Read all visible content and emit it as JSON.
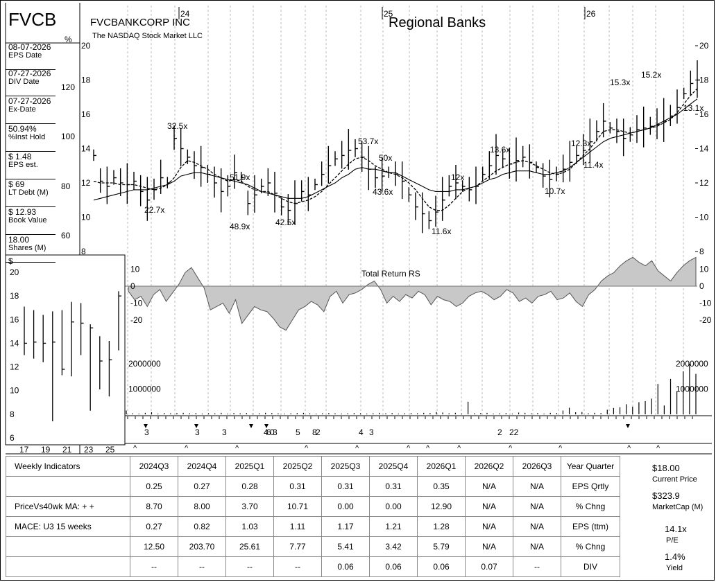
{
  "header": {
    "ticker": "FVCB",
    "company": "FVCBANKCORP INC",
    "exchange": "The NASDAQ Stock Market LLC",
    "industry": "Regional Banks",
    "pct_sign": "%",
    "dollar_sign": "$"
  },
  "sidebar": [
    {
      "value": "08-07-2026",
      "label": "EPS Date"
    },
    {
      "value": "07-27-2026",
      "label": "DIV Date"
    },
    {
      "value": "07-27-2026",
      "label": "Ex-Date"
    },
    {
      "value": "50.94%",
      "label": "%Inst Hold"
    },
    {
      "value": "$ 1.48",
      "label": "EPS est."
    },
    {
      "value": "$ 69",
      "label": "LT Debt (M)"
    },
    {
      "value": "$ 12.93",
      "label": "Book Value"
    },
    {
      "value": "18.00",
      "label": "Shares (M)"
    }
  ],
  "right_panel": {
    "price": "$18.00",
    "price_label": "Current Price",
    "mcap": "$323.9",
    "mcap_label": "MarketCap (M)",
    "pe": "14.1x",
    "pe_label": "P/E",
    "yield": "1.4%",
    "yield_label": "Yield"
  },
  "fundamentals": {
    "quarters": [
      "2024Q3",
      "2024Q4",
      "2025Q1",
      "2025Q2",
      "2025Q3",
      "2025Q4",
      "2026Q1",
      "2026Q2",
      "2026Q3"
    ],
    "rows": [
      {
        "left": "Weekly Indicators",
        "values": [
          "2024Q3",
          "2024Q4",
          "2025Q1",
          "2025Q2",
          "2025Q3",
          "2025Q4",
          "2026Q1",
          "2026Q2",
          "2026Q3"
        ],
        "label": "Year Quarter"
      },
      {
        "left": "",
        "values": [
          "0.25",
          "0.27",
          "0.28",
          "0.31",
          "0.31",
          "0.31",
          "0.35",
          "N/A",
          "N/A"
        ],
        "label": "EPS Qrtly"
      },
      {
        "left": "PriceVs40wk MA:  + +",
        "values": [
          "8.70",
          "8.00",
          "3.70",
          "10.71",
          "0.00",
          "0.00",
          "12.90",
          "N/A",
          "N/A"
        ],
        "label": "% Chng"
      },
      {
        "left": "MACE: U3  15 weeks",
        "values": [
          "0.27",
          "0.82",
          "1.03",
          "1.11",
          "1.17",
          "1.21",
          "1.28",
          "N/A",
          "N/A"
        ],
        "label": "EPS (ttm)"
      },
      {
        "left": "",
        "values": [
          "12.50",
          "203.70",
          "25.61",
          "7.77",
          "5.41",
          "3.42",
          "5.79",
          "N/A",
          "N/A"
        ],
        "label": "% Chng"
      },
      {
        "left": "",
        "values": [
          "--",
          "--",
          "--",
          "--",
          "0.06",
          "0.06",
          "0.06",
          "0.07",
          "--"
        ],
        "label": "DIV"
      }
    ]
  },
  "chart_data": [
    {
      "type": "line",
      "title": "Regional Banks",
      "x_labels": [
        "24",
        "25",
        "26"
      ],
      "y_ticks_price": [
        8,
        10,
        12,
        14,
        16,
        18,
        20
      ],
      "y_ticks_pct": [
        60,
        80,
        100,
        120
      ],
      "ylim": [
        8,
        20
      ],
      "series": [
        {
          "name": "close",
          "values": [
            13.6,
            12.1,
            11.8,
            12.3,
            12.0,
            11.9,
            12.1,
            11.5,
            11.0,
            11.6,
            12.3,
            12.0,
            14.6,
            14.0,
            13.5,
            13.0,
            12.9,
            12.5,
            12.0,
            11.5,
            11.8,
            12.6,
            12.3,
            10.8,
            11.3,
            11.8,
            12.0,
            11.4,
            10.6,
            10.4,
            10.8,
            11.5,
            11.3,
            11.9,
            12.5,
            13.0,
            13.4,
            13.6,
            13.9,
            14.0,
            13.5,
            12.8,
            12.3,
            12.4,
            12.6,
            12.5,
            12.1,
            11.3,
            10.6,
            10.2,
            9.8,
            10.3,
            11.0,
            11.8,
            12.0,
            11.8,
            11.6,
            11.8,
            12.5,
            13.0,
            13.6,
            13.4,
            13.1,
            13.3,
            13.5,
            13.2,
            12.9,
            12.4,
            12.2,
            12.5,
            12.8,
            13.2,
            13.6,
            13.9,
            14.4,
            15.0,
            15.6,
            15.2,
            15.0,
            14.6,
            14.8,
            15.1,
            15.2,
            15.3,
            15.4,
            15.6,
            15.9,
            16.4,
            17.2,
            17.8,
            18.0
          ]
        },
        {
          "name": "10wk MA",
          "values": [
            12.1,
            12.0,
            12.0,
            12.0,
            11.9,
            11.9,
            11.9,
            11.8,
            11.7,
            11.6,
            11.7,
            11.9,
            12.3,
            12.9,
            13.3,
            13.2,
            13.0,
            12.8,
            12.5,
            12.3,
            12.1,
            12.2,
            12.1,
            11.8,
            11.6,
            11.5,
            11.5,
            11.3,
            11.1,
            10.9,
            10.8,
            10.9,
            11.0,
            11.2,
            11.5,
            11.9,
            12.3,
            12.7,
            13.1,
            13.4,
            13.5,
            13.3,
            13.0,
            12.8,
            12.6,
            12.5,
            12.3,
            12.0,
            11.6,
            11.1,
            10.6,
            10.4,
            10.4,
            10.7,
            11.1,
            11.5,
            11.7,
            11.8,
            12.1,
            12.4,
            12.7,
            12.9,
            13.1,
            13.2,
            13.3,
            13.2,
            13.0,
            12.8,
            12.6,
            12.5,
            12.6,
            12.8,
            13.2,
            13.6,
            14.0,
            14.5,
            15.0,
            15.1,
            15.1,
            15.0,
            14.9,
            15.0,
            15.1,
            15.2,
            15.3,
            15.5,
            15.7,
            16.1,
            16.6,
            17.1,
            17.5
          ]
        },
        {
          "name": "40wk MA",
          "values": [
            11.0,
            11.1,
            11.2,
            11.3,
            11.4,
            11.5,
            11.6,
            11.6,
            11.6,
            11.7,
            11.8,
            11.9,
            12.1,
            12.4,
            12.5,
            12.6,
            12.6,
            12.5,
            12.4,
            12.3,
            12.2,
            12.1,
            12.0,
            11.9,
            11.7,
            11.5,
            11.4,
            11.3,
            11.2,
            11.1,
            11.1,
            11.1,
            11.2,
            11.4,
            11.6,
            11.8,
            12.0,
            12.3,
            12.5,
            12.8,
            12.9,
            12.8,
            12.8,
            12.7,
            12.6,
            12.6,
            12.4,
            12.2,
            12.0,
            11.8,
            11.6,
            11.5,
            11.5,
            11.5,
            11.6,
            11.6,
            11.7,
            11.8,
            12.0,
            12.2,
            12.3,
            12.5,
            12.6,
            12.7,
            12.7,
            12.7,
            12.6,
            12.5,
            12.5,
            12.6,
            12.7,
            12.9,
            13.2,
            13.5,
            13.8,
            14.1,
            14.4,
            14.6,
            14.7,
            14.8,
            14.9,
            15.0,
            15.1,
            15.2,
            15.4,
            15.6,
            15.8,
            16.0,
            16.3,
            16.6,
            16.9
          ]
        }
      ],
      "pe_annotations": [
        "22.7x",
        "32.5x",
        "48.9x",
        "51.9x",
        "42.5x",
        "53.7x",
        "50x",
        "43.6x",
        "11.6x",
        "12x",
        "13.6x",
        "10.7x",
        "12.3x",
        "11.4x",
        "15.3x",
        "15.2x",
        "13.1x"
      ]
    },
    {
      "type": "area",
      "title": "Total Return RS",
      "y_ticks": [
        10,
        0,
        -10,
        -20
      ],
      "ylim": [
        -30,
        20
      ],
      "values": [
        -3,
        -8,
        -6,
        -12,
        -5,
        -2,
        -9,
        -4,
        1,
        8,
        11,
        5,
        -1,
        -14,
        -12,
        -10,
        -16,
        -8,
        -22,
        -17,
        -12,
        -14,
        -15,
        -19,
        -24,
        -26,
        -20,
        -14,
        -12,
        -9,
        -11,
        -15,
        -6,
        -3,
        -10,
        -5,
        -4,
        -2,
        1,
        3,
        -2,
        -10,
        -6,
        -9,
        -5,
        -7,
        -3,
        -5,
        -11,
        -6,
        -8,
        -9,
        -12,
        -10,
        -6,
        -4,
        -3,
        -5,
        -8,
        -6,
        -2,
        -4,
        -9,
        -7,
        -10,
        -6,
        -5,
        -3,
        -8,
        -7,
        -4,
        -9,
        -12,
        -5,
        -2,
        3,
        6,
        8,
        12,
        15,
        17,
        14,
        12,
        15,
        9,
        6,
        3,
        8,
        12,
        15,
        17
      ]
    },
    {
      "type": "bar",
      "title": "",
      "y_ticks": [
        1000000,
        2000000
      ],
      "ylim": [
        0,
        2200000
      ],
      "values": [
        150000,
        40000,
        30000,
        60000,
        80000,
        30000,
        50000,
        40000,
        50000,
        60000,
        40000,
        50000,
        30000,
        40000,
        40000,
        60000,
        30000,
        50000,
        40000,
        50000,
        30000,
        40000,
        60000,
        50000,
        40000,
        30000,
        40000,
        50000,
        60000,
        40000,
        30000,
        40000,
        50000,
        40000,
        30000,
        40000,
        50000,
        40000,
        30000,
        40000,
        60000,
        40000,
        50000,
        30000,
        40000,
        50000,
        40000,
        60000,
        50000,
        90000,
        70000,
        40000,
        60000,
        30000,
        500000,
        40000,
        50000,
        60000,
        30000,
        40000,
        50000,
        30000,
        70000,
        60000,
        40000,
        50000,
        30000,
        60000,
        50000,
        150000,
        260000,
        80000,
        90000,
        40000,
        60000,
        50000,
        180000,
        250000,
        280000,
        400000,
        300000,
        480000,
        520000,
        620000,
        1200000,
        350000,
        1400000,
        900000,
        1700000,
        2000000,
        1600000
      ]
    },
    {
      "type": "line",
      "title": "",
      "x_labels": [
        "17",
        "19",
        "21",
        "23",
        "25"
      ],
      "y_ticks": [
        6,
        8,
        10,
        12,
        14,
        16,
        18,
        20
      ],
      "ylim": [
        6,
        21
      ],
      "bars": [
        {
          "high": 17.1,
          "low": 13.0,
          "close": 14.0
        },
        {
          "high": 16.8,
          "low": 12.7,
          "close": 14.1
        },
        {
          "high": 16.4,
          "low": 12.4,
          "close": 14.0
        },
        {
          "high": 16.7,
          "low": 7.4,
          "close": 14.1
        },
        {
          "high": 16.8,
          "low": 11.3,
          "close": 11.8
        },
        {
          "high": 17.5,
          "low": 11.2,
          "close": 15.8
        },
        {
          "high": 17.4,
          "low": 13.0,
          "close": 15.7
        },
        {
          "high": 15.6,
          "low": 8.3,
          "close": 15.3
        },
        {
          "high": 14.6,
          "low": 10.1,
          "close": 12.5
        },
        {
          "high": 14.2,
          "low": 9.5,
          "close": 12.6
        },
        {
          "high": 18.4,
          "low": 13.4,
          "close": 18.0
        }
      ]
    }
  ],
  "event_markers": {
    "row_numbers": [
      "3",
      "3",
      "3",
      "4",
      "6",
      "0",
      "3",
      "5",
      "8",
      "2",
      "4",
      "3",
      "2",
      "22"
    ]
  }
}
